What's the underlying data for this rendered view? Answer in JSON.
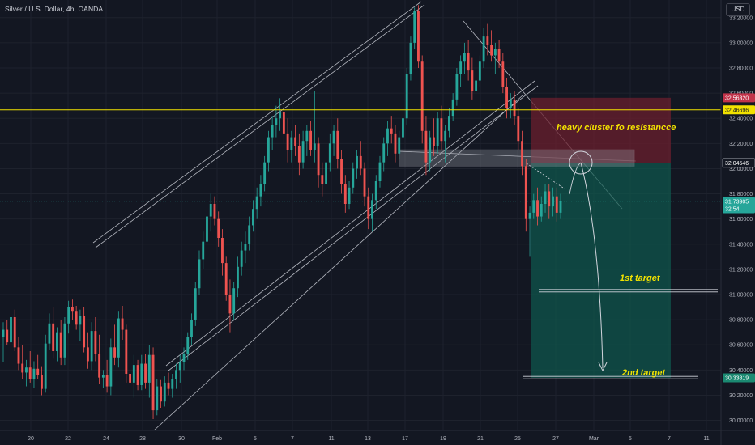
{
  "header": {
    "symbol_title": "Silver / U.S. Dollar, 4h, OANDA",
    "currency_button": "USD"
  },
  "colors": {
    "background": "#131722",
    "up": "#26a69a",
    "down": "#ef5350",
    "resistance_line": "#f2e200",
    "annotation_text": "#f2e200",
    "target_zone": "#0e5a4e",
    "stop_zone": "#6b1f2e"
  },
  "chart_data": {
    "type": "candlestick",
    "title": "Silver / U.S. Dollar, 4h, OANDA",
    "ylim": [
      29.92,
      33.34
    ],
    "y_ticks": [
      "33.20000",
      "33.00000",
      "32.80000",
      "32.60000",
      "32.40000",
      "32.20000",
      "32.00000",
      "31.80000",
      "31.60000",
      "31.40000",
      "31.20000",
      "31.00000",
      "30.80000",
      "30.60000",
      "30.40000",
      "30.20000",
      "30.00000"
    ],
    "x_ticks": [
      "20",
      "22",
      "24",
      "28",
      "30",
      "Feb",
      "5",
      "7",
      "11",
      "13",
      "17",
      "19",
      "21",
      "25",
      "27",
      "Mar",
      "5",
      "7",
      "11"
    ],
    "price_tags": [
      {
        "value": 32.5632,
        "label": "32.56320",
        "kind": "stop"
      },
      {
        "value": 32.46696,
        "label": "32.46696",
        "kind": "resistance"
      },
      {
        "value": 32.04546,
        "label": "32.04546",
        "kind": "entry"
      },
      {
        "value": 31.73905,
        "label": "31.73905",
        "kind": "last",
        "sub": "32:54"
      },
      {
        "value": 30.33819,
        "label": "30.33819",
        "kind": "target"
      }
    ],
    "resistance_level": 32.46696,
    "annotations": {
      "resistance_label": "heavy cluster fo resistancce",
      "target1_label": "1st target",
      "target2_label": "2nd target"
    },
    "trade_zone": {
      "stop": 32.5632,
      "entry": 32.04546,
      "target": 30.33819
    },
    "levels": {
      "target1": 31.03,
      "target2": 30.34,
      "box_top": 32.15,
      "box_bottom": 32.02
    },
    "candles": [
      [
        30.66,
        30.78,
        30.46,
        30.72
      ],
      [
        30.72,
        30.8,
        30.6,
        30.62
      ],
      [
        30.62,
        30.86,
        30.56,
        30.82
      ],
      [
        30.82,
        30.88,
        30.55,
        30.58
      ],
      [
        30.58,
        30.66,
        30.4,
        30.45
      ],
      [
        30.45,
        30.6,
        30.33,
        30.38
      ],
      [
        30.38,
        30.48,
        30.27,
        30.42
      ],
      [
        30.42,
        30.55,
        30.3,
        30.33
      ],
      [
        30.33,
        30.47,
        30.26,
        30.41
      ],
      [
        30.41,
        30.52,
        30.33,
        30.36
      ],
      [
        30.36,
        30.43,
        30.2,
        30.25
      ],
      [
        30.25,
        30.68,
        30.22,
        30.61
      ],
      [
        30.61,
        30.85,
        30.56,
        30.77
      ],
      [
        30.77,
        30.9,
        30.49,
        30.55
      ],
      [
        30.55,
        30.74,
        30.47,
        30.7
      ],
      [
        30.7,
        30.8,
        30.44,
        30.5
      ],
      [
        30.5,
        30.82,
        30.44,
        30.77
      ],
      [
        30.77,
        30.95,
        30.69,
        30.9
      ],
      [
        30.9,
        30.96,
        30.8,
        30.87
      ],
      [
        30.87,
        30.91,
        30.72,
        30.76
      ],
      [
        30.76,
        30.88,
        30.63,
        30.83
      ],
      [
        30.83,
        30.9,
        30.54,
        30.58
      ],
      [
        30.58,
        30.7,
        30.41,
        30.47
      ],
      [
        30.47,
        30.78,
        30.4,
        30.71
      ],
      [
        30.71,
        30.82,
        30.47,
        30.53
      ],
      [
        30.53,
        30.68,
        30.29,
        30.34
      ],
      [
        30.34,
        30.4,
        30.26,
        30.36
      ],
      [
        30.36,
        30.48,
        30.22,
        30.27
      ],
      [
        30.27,
        30.65,
        30.2,
        30.58
      ],
      [
        30.58,
        30.76,
        30.44,
        30.5
      ],
      [
        30.5,
        30.87,
        30.42,
        30.81
      ],
      [
        30.81,
        30.91,
        30.64,
        30.72
      ],
      [
        30.72,
        30.76,
        30.3,
        30.37
      ],
      [
        30.37,
        30.46,
        30.26,
        30.3
      ],
      [
        30.3,
        30.52,
        30.18,
        30.44
      ],
      [
        30.44,
        30.48,
        30.24,
        30.28
      ],
      [
        30.28,
        30.52,
        30.24,
        30.45
      ],
      [
        30.45,
        30.53,
        30.25,
        30.3
      ],
      [
        30.3,
        30.6,
        30.18,
        30.52
      ],
      [
        30.52,
        30.58,
        30.01,
        30.08
      ],
      [
        30.08,
        30.33,
        30.04,
        30.27
      ],
      [
        30.27,
        30.32,
        30.1,
        30.15
      ],
      [
        30.15,
        30.35,
        30.11,
        30.3
      ],
      [
        30.3,
        30.38,
        30.2,
        30.25
      ],
      [
        30.25,
        30.37,
        30.18,
        30.33
      ],
      [
        30.33,
        30.45,
        30.25,
        30.4
      ],
      [
        30.4,
        30.52,
        30.3,
        30.46
      ],
      [
        30.46,
        30.58,
        30.4,
        30.53
      ],
      [
        30.53,
        30.7,
        30.48,
        30.66
      ],
      [
        30.66,
        30.85,
        30.6,
        30.8
      ],
      [
        30.8,
        31.1,
        30.75,
        31.05
      ],
      [
        31.05,
        31.35,
        31.0,
        31.28
      ],
      [
        31.28,
        31.5,
        31.2,
        31.42
      ],
      [
        31.42,
        31.7,
        31.35,
        31.62
      ],
      [
        31.62,
        31.8,
        31.5,
        31.72
      ],
      [
        31.72,
        31.78,
        31.55,
        31.6
      ],
      [
        31.6,
        31.66,
        31.38,
        31.45
      ],
      [
        31.45,
        31.52,
        31.15,
        31.25
      ],
      [
        31.25,
        31.3,
        30.95,
        31.0
      ],
      [
        31.0,
        31.12,
        30.7,
        30.85
      ],
      [
        30.85,
        31.1,
        30.8,
        31.05
      ],
      [
        31.05,
        31.3,
        30.98,
        31.22
      ],
      [
        31.22,
        31.42,
        31.15,
        31.35
      ],
      [
        31.35,
        31.5,
        31.25,
        31.4
      ],
      [
        31.4,
        31.62,
        31.35,
        31.55
      ],
      [
        31.55,
        31.75,
        31.5,
        31.68
      ],
      [
        31.68,
        31.85,
        31.6,
        31.78
      ],
      [
        31.78,
        31.95,
        31.7,
        31.88
      ],
      [
        31.88,
        32.1,
        31.82,
        32.05
      ],
      [
        32.05,
        32.3,
        31.98,
        32.25
      ],
      [
        32.25,
        32.42,
        32.15,
        32.35
      ],
      [
        32.35,
        32.5,
        32.25,
        32.4
      ],
      [
        32.4,
        32.56,
        32.3,
        32.45
      ],
      [
        32.45,
        32.5,
        32.2,
        32.28
      ],
      [
        32.28,
        32.4,
        32.05,
        32.15
      ],
      [
        32.15,
        32.3,
        32.05,
        32.25
      ],
      [
        32.25,
        32.35,
        32.1,
        32.18
      ],
      [
        32.18,
        32.28,
        31.95,
        32.05
      ],
      [
        32.05,
        32.3,
        32.0,
        32.22
      ],
      [
        32.22,
        32.35,
        32.1,
        32.3
      ],
      [
        32.3,
        32.38,
        32.1,
        32.15
      ],
      [
        32.15,
        32.62,
        32.05,
        32.2
      ],
      [
        32.2,
        32.25,
        31.85,
        31.95
      ],
      [
        31.95,
        32.05,
        31.78,
        31.88
      ],
      [
        31.88,
        32.1,
        31.82,
        32.05
      ],
      [
        32.05,
        32.28,
        31.98,
        32.2
      ],
      [
        32.2,
        32.35,
        32.1,
        32.3
      ],
      [
        32.3,
        32.4,
        32.0,
        32.08
      ],
      [
        32.08,
        32.15,
        31.8,
        31.88
      ],
      [
        31.88,
        31.95,
        31.65,
        31.72
      ],
      [
        31.72,
        31.9,
        31.68,
        31.85
      ],
      [
        31.85,
        32.05,
        31.8,
        32.0
      ],
      [
        32.0,
        32.15,
        31.92,
        32.1
      ],
      [
        32.1,
        32.22,
        31.95,
        32.0
      ],
      [
        32.0,
        32.05,
        31.7,
        31.78
      ],
      [
        31.78,
        31.85,
        31.52,
        31.6
      ],
      [
        31.6,
        31.8,
        31.5,
        31.75
      ],
      [
        31.75,
        31.95,
        31.68,
        31.9
      ],
      [
        31.9,
        32.1,
        31.85,
        32.05
      ],
      [
        32.05,
        32.25,
        31.98,
        32.2
      ],
      [
        32.2,
        32.38,
        32.1,
        32.32
      ],
      [
        32.32,
        32.42,
        32.2,
        32.28
      ],
      [
        32.28,
        32.35,
        32.05,
        32.12
      ],
      [
        32.12,
        32.3,
        32.08,
        32.25
      ],
      [
        32.25,
        32.45,
        32.2,
        32.4
      ],
      [
        32.4,
        32.8,
        32.35,
        32.75
      ],
      [
        32.75,
        33.05,
        32.7,
        33.0
      ],
      [
        33.0,
        33.28,
        32.95,
        33.25
      ],
      [
        33.25,
        33.3,
        32.8,
        32.85
      ],
      [
        32.85,
        32.9,
        32.2,
        32.3
      ],
      [
        32.3,
        32.42,
        31.95,
        32.05
      ],
      [
        32.05,
        32.3,
        31.98,
        32.25
      ],
      [
        32.25,
        32.4,
        32.1,
        32.18
      ],
      [
        32.18,
        32.45,
        32.12,
        32.4
      ],
      [
        32.4,
        32.5,
        32.15,
        32.22
      ],
      [
        32.22,
        32.35,
        32.05,
        32.3
      ],
      [
        32.3,
        32.48,
        32.25,
        32.42
      ],
      [
        32.42,
        32.6,
        32.38,
        32.55
      ],
      [
        32.55,
        32.8,
        32.5,
        32.75
      ],
      [
        32.75,
        32.9,
        32.65,
        32.85
      ],
      [
        32.85,
        33.0,
        32.75,
        32.92
      ],
      [
        32.92,
        33.02,
        32.7,
        32.78
      ],
      [
        32.78,
        32.88,
        32.55,
        32.62
      ],
      [
        32.62,
        32.75,
        32.5,
        32.7
      ],
      [
        32.7,
        32.9,
        32.65,
        32.85
      ],
      [
        32.85,
        33.12,
        32.8,
        33.05
      ],
      [
        33.05,
        33.15,
        32.9,
        32.98
      ],
      [
        32.98,
        33.1,
        32.85,
        32.9
      ],
      [
        32.9,
        33.0,
        32.75,
        32.95
      ],
      [
        32.95,
        33.02,
        32.8,
        32.85
      ],
      [
        32.85,
        32.92,
        32.6,
        32.65
      ],
      [
        32.65,
        32.72,
        32.4,
        32.48
      ],
      [
        32.48,
        32.6,
        32.4,
        32.55
      ],
      [
        32.55,
        32.62,
        32.35,
        32.42
      ],
      [
        32.42,
        32.48,
        32.15,
        32.22
      ],
      [
        32.22,
        32.3,
        31.95,
        32.02
      ],
      [
        32.02,
        32.08,
        31.5,
        31.6
      ],
      [
        31.6,
        31.7,
        31.3,
        31.65
      ],
      [
        31.65,
        31.8,
        31.6,
        31.75
      ],
      [
        31.75,
        31.85,
        31.55,
        31.62
      ],
      [
        31.62,
        31.78,
        31.58,
        31.72
      ],
      [
        31.72,
        31.88,
        31.65,
        31.82
      ],
      [
        31.82,
        31.88,
        31.6,
        31.7
      ],
      [
        31.7,
        31.85,
        31.62,
        31.78
      ],
      [
        31.78,
        31.85,
        31.58,
        31.65
      ],
      [
        31.65,
        31.8,
        31.6,
        31.74
      ]
    ]
  }
}
